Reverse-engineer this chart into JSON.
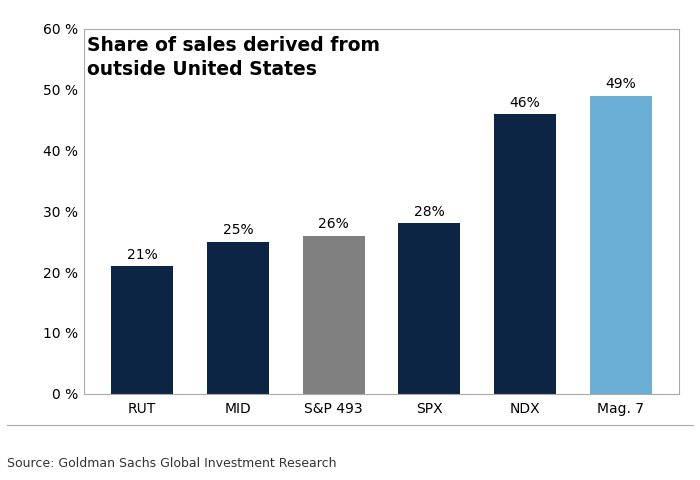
{
  "categories": [
    "RUT",
    "MID",
    "S&P 493",
    "SPX",
    "NDX",
    "Mag. 7"
  ],
  "values": [
    21,
    25,
    26,
    28,
    46,
    49
  ],
  "bar_colors": [
    "#0d2545",
    "#0d2545",
    "#808080",
    "#0d2545",
    "#0d2545",
    "#6baed6"
  ],
  "labels": [
    "21%",
    "25%",
    "26%",
    "28%",
    "46%",
    "49%"
  ],
  "title_line1": "Share of sales derived from",
  "title_line2": "outside United States",
  "ylim": [
    0,
    60
  ],
  "yticks": [
    0,
    10,
    20,
    30,
    40,
    50,
    60
  ],
  "ytick_labels": [
    "0 %",
    "10 %",
    "20 %",
    "30 %",
    "40 %",
    "50 %",
    "60 %"
  ],
  "source_text": "Source: Goldman Sachs Global Investment Research",
  "background_color": "#ffffff",
  "plot_bg_color": "#ffffff",
  "title_fontsize": 13.5,
  "label_fontsize": 10,
  "tick_fontsize": 10,
  "source_fontsize": 9,
  "border_color": "#aaaaaa"
}
